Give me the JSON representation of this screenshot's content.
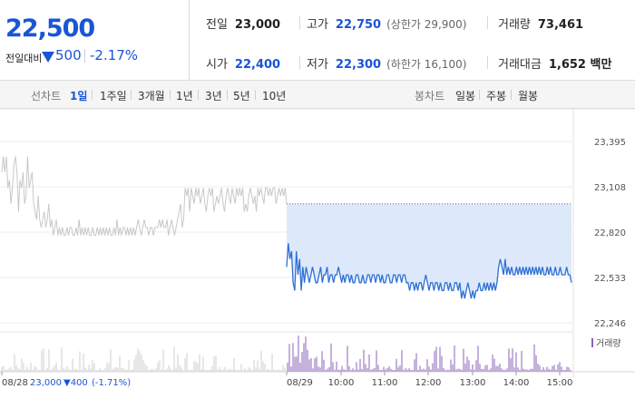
{
  "summary": {
    "price": "22,500",
    "change_label": "전일대비",
    "change_amount": "500",
    "change_rate": "-2.17%",
    "prev_close": {
      "label": "전일",
      "value": "23,000"
    },
    "high": {
      "label": "고가",
      "value": "22,750",
      "sub": "(상한가 29,900)"
    },
    "volume": {
      "label": "거래량",
      "value": "73,461"
    },
    "open": {
      "label": "시가",
      "value": "22,400"
    },
    "low": {
      "label": "저가",
      "value": "22,300",
      "sub": "(하한가 16,100)"
    },
    "amount": {
      "label": "거래대금",
      "value": "1,652 백만"
    },
    "down_color": "#1a55d5"
  },
  "tabs": {
    "line_title": "선차트",
    "line_periods": [
      "1일",
      "1주일",
      "3개월",
      "1년",
      "3년",
      "5년",
      "10년"
    ],
    "line_active": "1일",
    "candle_title": "봉차트",
    "candle_periods": [
      "일봉",
      "주봉",
      "월봉"
    ]
  },
  "chart_data": {
    "type": "line",
    "y_ticks": [
      "23,395",
      "23,108",
      "22,820",
      "22,533",
      "22,246"
    ],
    "ylim": [
      22246,
      23395
    ],
    "prev_close_ref": 23000,
    "x_ticks": [
      "08/28",
      "08/29",
      "10:00",
      "11:00",
      "12:00",
      "13:00",
      "14:00",
      "15:00"
    ],
    "volume_legend": "거래량",
    "prev_day_info": {
      "date": "08/28",
      "price": "23,000",
      "change": "▼400",
      "rate": "(-1.71%)"
    },
    "series": [
      {
        "values_prev_day": [
          23200,
          23300,
          23200,
          23300,
          23100,
          23150,
          23000,
          23100,
          23250,
          23300,
          23200,
          22950,
          23150,
          23100,
          23200,
          23000,
          23050,
          23300,
          23100,
          23150,
          23200,
          23000,
          22950,
          22900,
          23050,
          22900,
          22850,
          22900,
          22950,
          22850,
          22900,
          23000,
          22850,
          22900,
          22800,
          22850,
          22900,
          22800,
          22850,
          22800,
          22850,
          22800,
          22800,
          22850,
          22800,
          22850,
          22850,
          22800,
          22800,
          22850,
          22800,
          22900,
          22800,
          22850,
          22800,
          22850,
          22800,
          22850,
          22800,
          22800,
          22850,
          22800,
          22800,
          22850,
          22800,
          22850,
          22800,
          22850,
          22800,
          22850,
          22800,
          22850,
          22800,
          22800,
          22850,
          22800,
          22900,
          22800,
          22850,
          22800,
          22850,
          22850,
          22800,
          22850,
          22800,
          22850,
          22800,
          22850,
          22800,
          22850,
          22900,
          22850,
          22800,
          22850,
          22900,
          22850,
          22850,
          22800,
          22850,
          22850,
          22800,
          22850,
          22850,
          22850,
          22900,
          22850,
          22900,
          22850,
          22850,
          22900,
          22800,
          22850,
          22900,
          22850,
          22800,
          22850,
          22900,
          22950,
          23000,
          22850,
          22900,
          23100,
          23050,
          23100,
          22950,
          23100,
          23050,
          23000,
          23100,
          23050,
          23100,
          23000,
          23050,
          23100,
          23000,
          22950,
          23050,
          23100,
          23050,
          23100,
          22950,
          23000,
          23050,
          23000,
          23050,
          23100,
          23000,
          22950,
          23050,
          23100,
          23050,
          23000,
          23100,
          23050,
          23000,
          23100,
          23050,
          23100,
          23050,
          23100,
          22950,
          23000,
          22950,
          23050,
          23100,
          23050,
          23000,
          23050,
          22950,
          23100,
          23050,
          23100,
          23050,
          23000,
          23100,
          23100,
          23050,
          23100,
          23050,
          23100,
          23100,
          23000,
          23050,
          23100,
          23050,
          23100,
          23050,
          23100,
          23000
        ],
        "values_today": [
          22600,
          22750,
          22650,
          22700,
          22500,
          22450,
          22700,
          22550,
          22650,
          22450,
          22600,
          22500,
          22600,
          22550,
          22500,
          22550,
          22600,
          22550,
          22500,
          22500,
          22550,
          22600,
          22500,
          22550,
          22550,
          22600,
          22500,
          22550,
          22550,
          22500,
          22550,
          22550,
          22600,
          22550,
          22500,
          22550,
          22500,
          22550,
          22550,
          22500,
          22550,
          22500,
          22500,
          22550,
          22550,
          22500,
          22500,
          22550,
          22500,
          22500,
          22550,
          22550,
          22500,
          22550,
          22550,
          22500,
          22550,
          22550,
          22500,
          22550,
          22500,
          22500,
          22550,
          22550,
          22500,
          22500,
          22550,
          22550,
          22500,
          22550,
          22550,
          22500,
          22550,
          22550,
          22500,
          22500,
          22450,
          22500,
          22500,
          22450,
          22500,
          22450,
          22500,
          22500,
          22450,
          22500,
          22550,
          22500,
          22450,
          22500,
          22500,
          22450,
          22500,
          22500,
          22450,
          22500,
          22450,
          22450,
          22500,
          22500,
          22450,
          22500,
          22450,
          22450,
          22500,
          22500,
          22450,
          22500,
          22400,
          22450,
          22400,
          22450,
          22500,
          22450,
          22400,
          22450,
          22400,
          22450,
          22450,
          22500,
          22450,
          22450,
          22500,
          22450,
          22500,
          22450,
          22500,
          22450,
          22500,
          22450,
          22500,
          22600,
          22650,
          22600,
          22550,
          22650,
          22550,
          22600,
          22550,
          22600,
          22550,
          22550,
          22600,
          22550,
          22600,
          22550,
          22600,
          22550,
          22600,
          22550,
          22600,
          22550,
          22600,
          22550,
          22600,
          22550,
          22600,
          22550,
          22600,
          22550,
          22550,
          22600,
          22550,
          22600,
          22550,
          22550,
          22600,
          22550,
          22550,
          22600,
          22550,
          22550,
          22550,
          22600,
          22550,
          22550,
          22500
        ]
      }
    ]
  }
}
